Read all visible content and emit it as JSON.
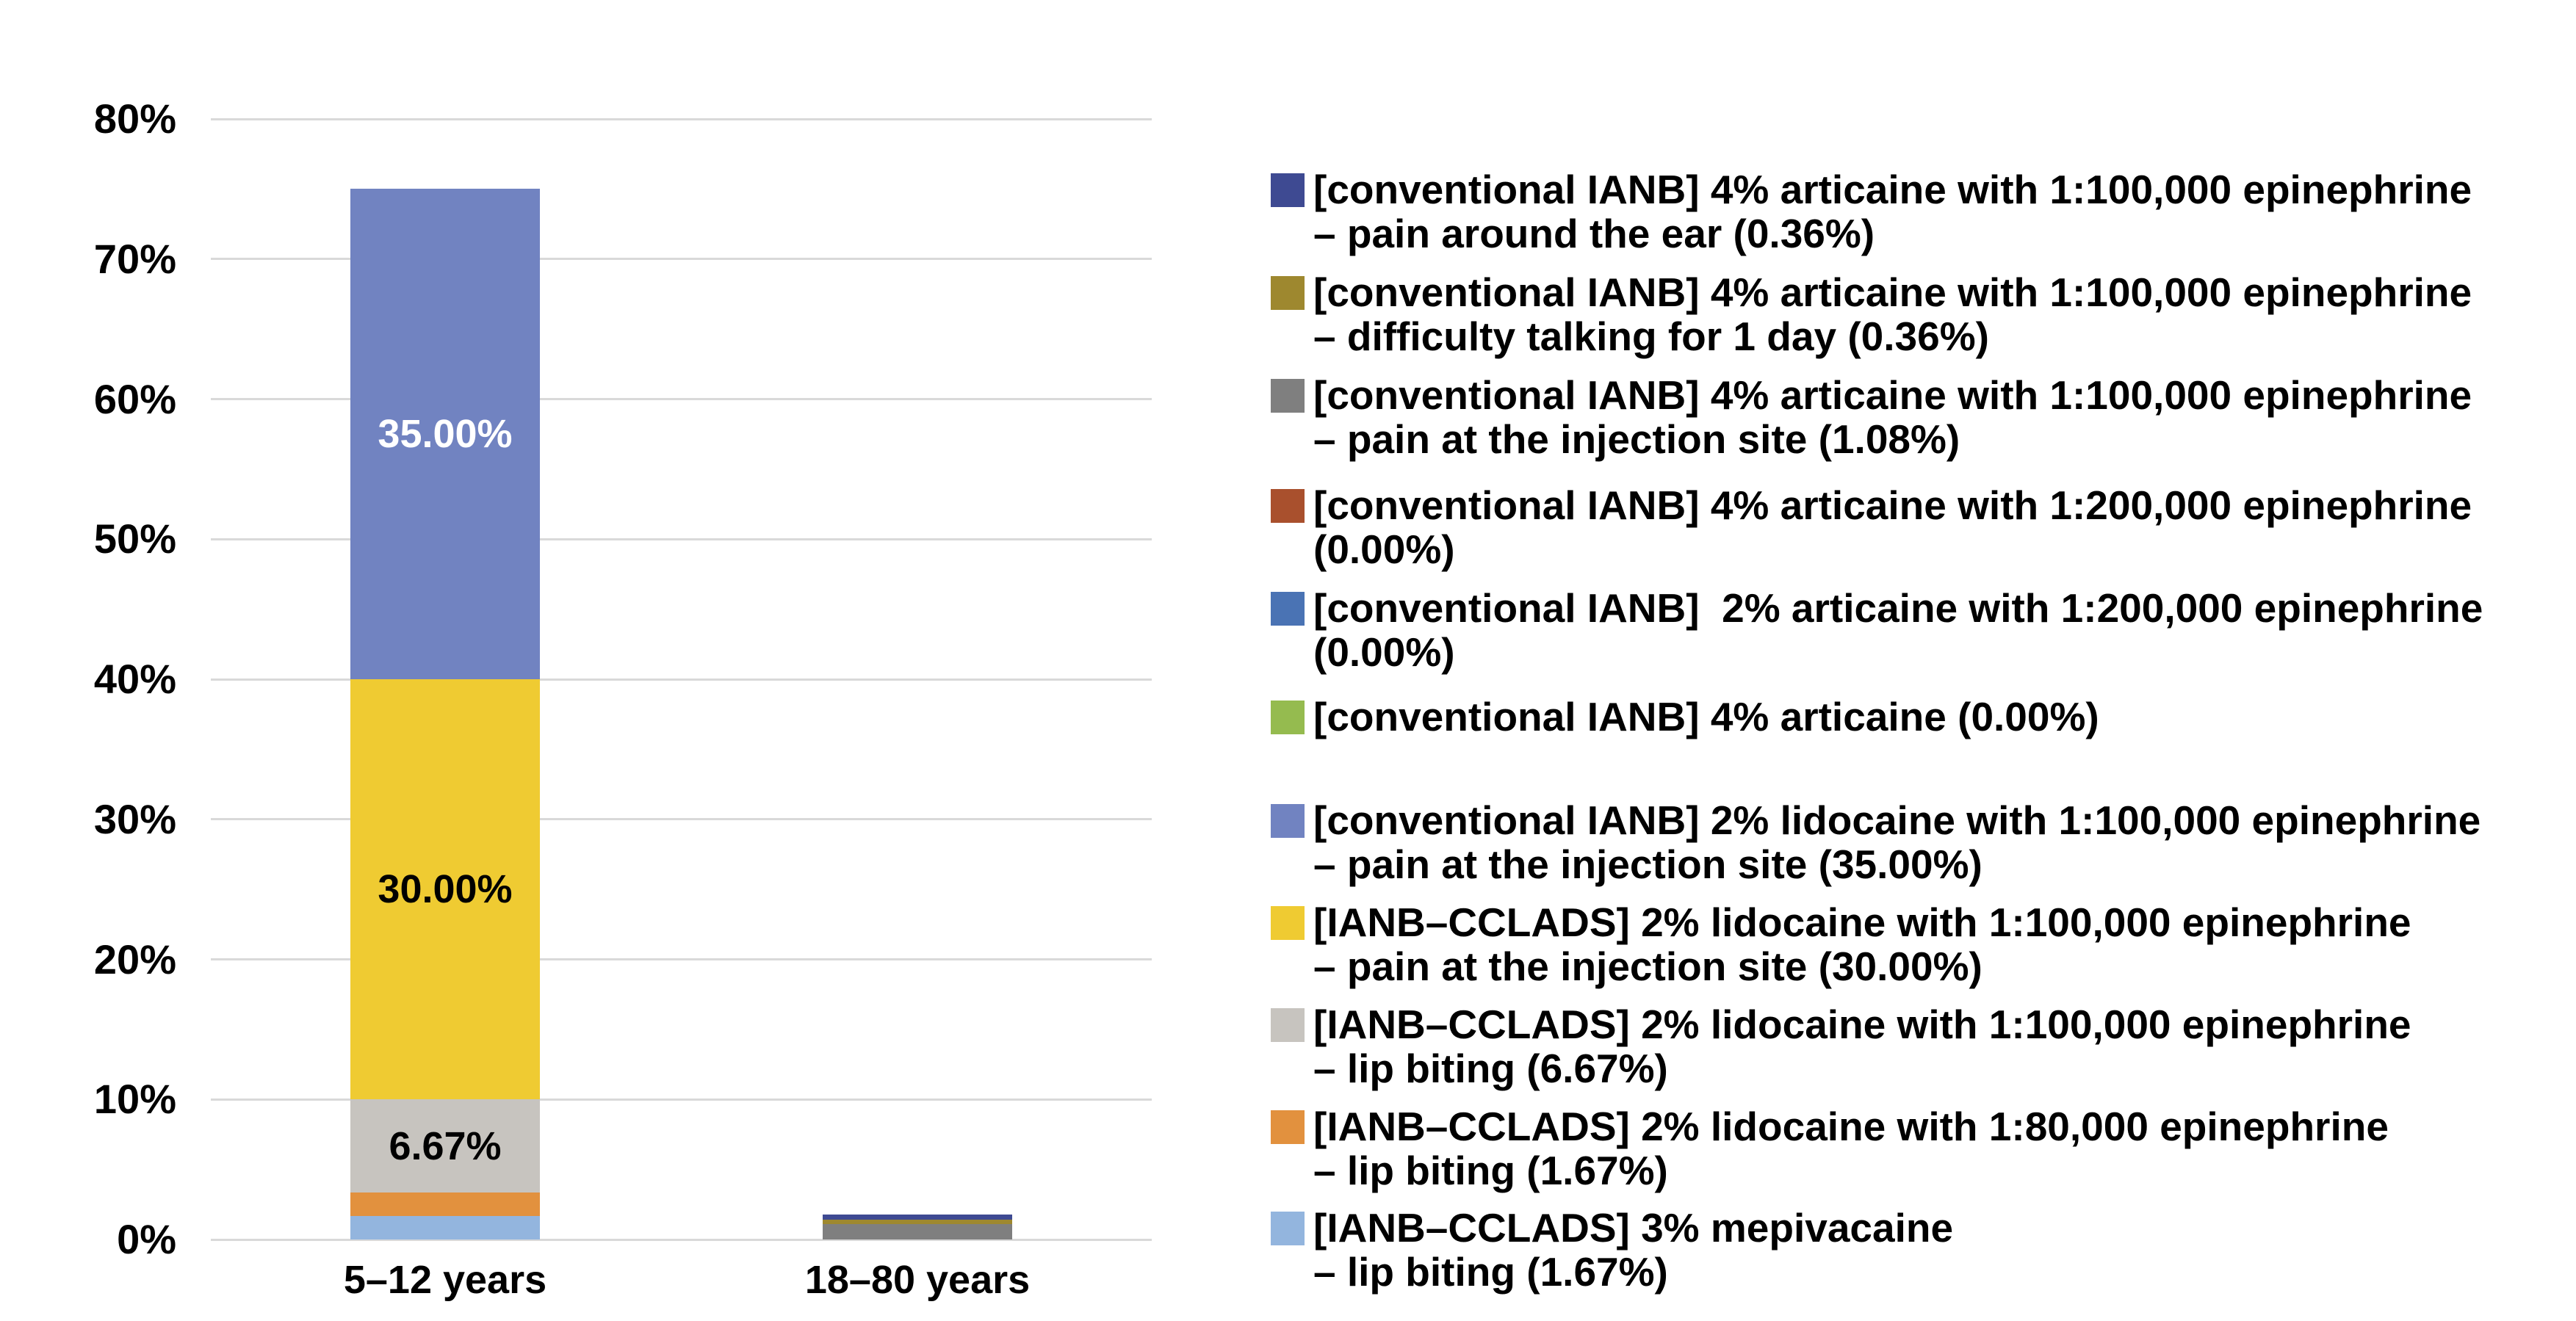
{
  "chart_data": {
    "type": "bar",
    "stacked": true,
    "title": "",
    "xlabel": "",
    "ylabel": "",
    "categories": [
      "5–12 years",
      "18–80 years"
    ],
    "y_axis": {
      "min": 0,
      "max": 80,
      "step": 10,
      "unit": "%",
      "tick_labels": [
        "0%",
        "10%",
        "20%",
        "30%",
        "40%",
        "50%",
        "60%",
        "70%",
        "80%"
      ]
    },
    "grid": "horizontal-on",
    "legend_position": "right",
    "stack_order": "reverse-of-legend-order",
    "category_totals": [
      "75.01",
      "1.80"
    ],
    "series": [
      {
        "name": "[conventional IANB] 4% articaine with 1:100,000 epinephrine – pain around the ear (0.36%)",
        "legend_lines": [
          "[conventional IANB] 4% articaine with 1:100,000 epinephrine",
          "– pain around the ear (0.36%)"
        ],
        "color": "#3E4A92",
        "values": [
          0,
          0.36
        ],
        "data_labels": [
          "",
          ""
        ],
        "label_colors": [
          "",
          ""
        ]
      },
      {
        "name": "[conventional IANB] 4% articaine with 1:100,000 epinephrine – difficulty talking for 1 day (0.36%)",
        "legend_lines": [
          "[conventional IANB] 4% articaine with 1:100,000 epinephrine",
          "– difficulty talking for 1 day (0.36%)"
        ],
        "color": "#9E882F",
        "values": [
          0,
          0.36
        ],
        "data_labels": [
          "",
          ""
        ],
        "label_colors": [
          "",
          ""
        ]
      },
      {
        "name": "[conventional IANB] 4% articaine with 1:100,000 epinephrine – pain at the injection site (1.08%)",
        "legend_lines": [
          "[conventional IANB] 4% articaine with 1:100,000 epinephrine",
          "– pain at the injection site (1.08%)"
        ],
        "color": "#7F7F7F",
        "values": [
          0,
          1.08
        ],
        "data_labels": [
          "",
          ""
        ],
        "label_colors": [
          "",
          ""
        ]
      },
      {
        "name": "[conventional IANB] 4% articaine with 1:200,000 epinephrine (0.00%)",
        "legend_lines": [
          "[conventional IANB] 4% articaine with 1:200,000 epinephrine",
          "(0.00%)"
        ],
        "color": "#A9502D",
        "values": [
          0,
          0
        ],
        "data_labels": [
          "",
          ""
        ],
        "label_colors": [
          "",
          ""
        ]
      },
      {
        "name": "[conventional IANB]  2% articaine with 1:200,000 epinephrine (0.00%)",
        "legend_lines": [
          "[conventional IANB]  2% articaine with 1:200,000 epinephrine",
          "(0.00%)"
        ],
        "color": "#4A73B4",
        "values": [
          0,
          0
        ],
        "data_labels": [
          "",
          ""
        ],
        "label_colors": [
          "",
          ""
        ]
      },
      {
        "name": "[conventional IANB] 4% articaine (0.00%)",
        "legend_lines": [
          "[conventional IANB] 4% articaine (0.00%)"
        ],
        "color": "#95BB4F",
        "values": [
          0,
          0
        ],
        "data_labels": [
          "",
          ""
        ],
        "label_colors": [
          "",
          ""
        ]
      },
      {
        "name": "[conventional IANB] 2% lidocaine with 1:100,000 epinephrine – pain at the injection site (35.00%)",
        "legend_lines": [
          "[conventional IANB] 2% lidocaine with 1:100,000 epinephrine",
          "– pain at the injection site (35.00%)"
        ],
        "color": "#7183C1",
        "values": [
          35.0,
          0
        ],
        "data_labels": [
          "35.00%",
          ""
        ],
        "label_colors": [
          "#FFFFFF",
          ""
        ]
      },
      {
        "name": "[IANB–CCLADS] 2% lidocaine with 1:100,000 epinephrine – pain at the injection site (30.00%)",
        "legend_lines": [
          "[IANB–CCLADS] 2% lidocaine with 1:100,000 epinephrine",
          "– pain at the injection site (30.00%)"
        ],
        "color": "#EFCB32",
        "values": [
          30.0,
          0
        ],
        "data_labels": [
          "30.00%",
          ""
        ],
        "label_colors": [
          "#000000",
          ""
        ]
      },
      {
        "name": "[IANB–CCLADS] 2% lidocaine with 1:100,000 epinephrine – lip biting (6.67%)",
        "legend_lines": [
          "[IANB–CCLADS] 2% lidocaine with 1:100,000 epinephrine",
          "– lip biting (6.67%)"
        ],
        "color": "#C7C4BF",
        "values": [
          6.67,
          0
        ],
        "data_labels": [
          "6.67%",
          ""
        ],
        "label_colors": [
          "#000000",
          ""
        ]
      },
      {
        "name": "[IANB–CCLADS] 2% lidocaine with 1:80,000 epinephrine – lip biting (1.67%)",
        "legend_lines": [
          "[IANB–CCLADS] 2% lidocaine with 1:80,000 epinephrine",
          "– lip biting (1.67%)"
        ],
        "color": "#E2913E",
        "values": [
          1.67,
          0
        ],
        "data_labels": [
          "",
          ""
        ],
        "label_colors": [
          "",
          ""
        ]
      },
      {
        "name": "[IANB–CCLADS] 3% mepivacaine – lip biting (1.67%)",
        "legend_lines": [
          "[IANB–CCLADS] 3% mepivacaine",
          "– lip biting (1.67%)"
        ],
        "color": "#93B5DE",
        "values": [
          1.67,
          0
        ],
        "data_labels": [
          "",
          ""
        ],
        "label_colors": [
          "",
          ""
        ]
      }
    ],
    "style": {
      "gridline_color": "#D9D9D9",
      "background": "#FFFFFF",
      "text_color": "#000000"
    }
  }
}
